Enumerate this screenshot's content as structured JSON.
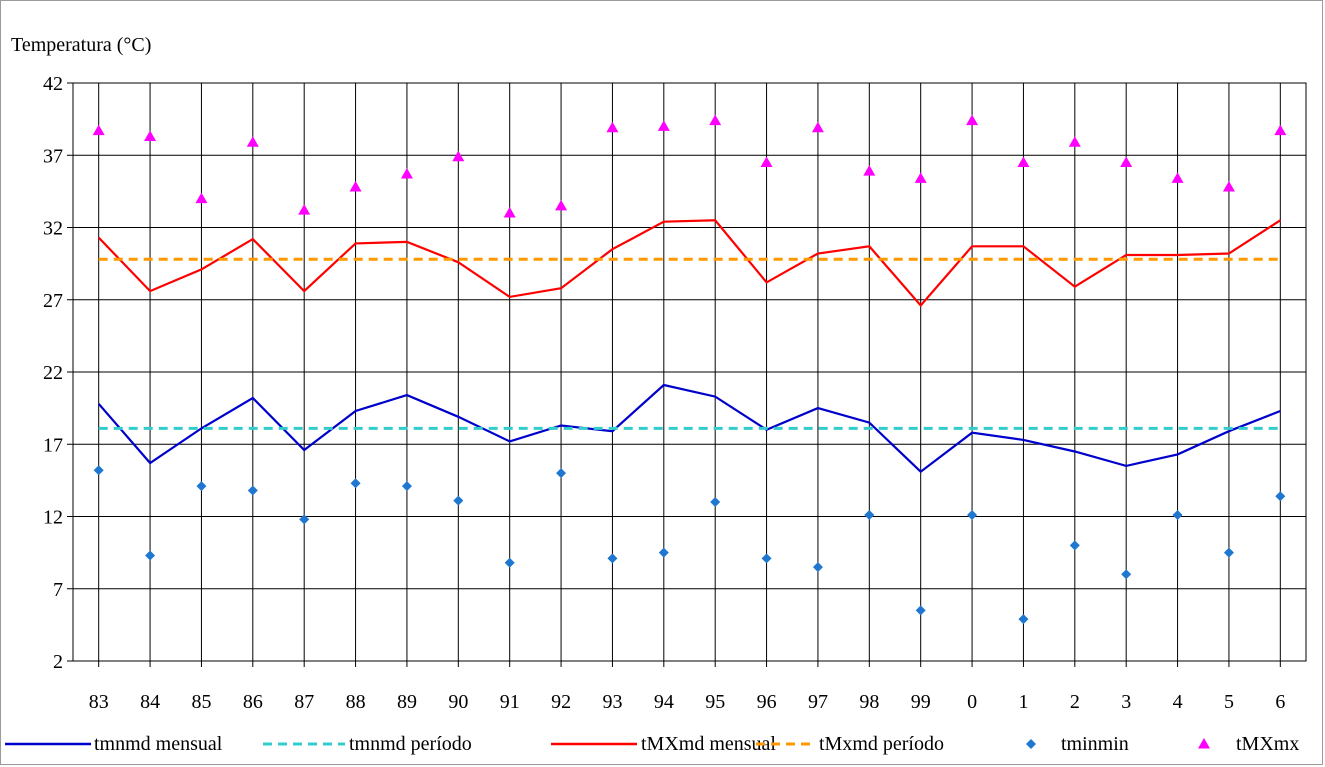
{
  "chart_data": {
    "type": "line",
    "ylabel": "Temperatura (°C)",
    "xlabel": "",
    "ylim": [
      2,
      42
    ],
    "yticks": [
      2,
      7,
      12,
      17,
      22,
      27,
      32,
      37,
      42
    ],
    "grid": true,
    "legend_position": "bottom",
    "categories": [
      "83",
      "84",
      "85",
      "86",
      "87",
      "88",
      "89",
      "90",
      "91",
      "92",
      "93",
      "94",
      "95",
      "96",
      "97",
      "98",
      "99",
      "0",
      "1",
      "2",
      "3",
      "4",
      "5",
      "6"
    ],
    "series": [
      {
        "name": "tmnmd mensual",
        "kind": "line",
        "color": "#0000cc",
        "values": [
          19.8,
          15.7,
          18.1,
          20.2,
          16.6,
          19.3,
          20.4,
          18.9,
          17.2,
          18.3,
          17.9,
          21.1,
          20.3,
          18.0,
          19.5,
          18.5,
          15.1,
          17.8,
          17.3,
          16.5,
          15.5,
          16.3,
          17.9,
          19.3
        ]
      },
      {
        "name": "tmnmd período",
        "kind": "dashed",
        "color": "#33cccc",
        "values": [
          18.1,
          18.1,
          18.1,
          18.1,
          18.1,
          18.1,
          18.1,
          18.1,
          18.1,
          18.1,
          18.1,
          18.1,
          18.1,
          18.1,
          18.1,
          18.1,
          18.1,
          18.1,
          18.1,
          18.1,
          18.1,
          18.1,
          18.1,
          18.1
        ]
      },
      {
        "name": "tMXmd mensual",
        "kind": "line",
        "color": "#ff0000",
        "values": [
          31.3,
          27.6,
          29.1,
          31.2,
          27.6,
          30.9,
          31.0,
          29.6,
          27.2,
          27.8,
          30.5,
          32.4,
          32.5,
          28.2,
          30.2,
          30.7,
          26.6,
          30.7,
          30.7,
          27.9,
          30.1,
          30.1,
          30.2,
          32.5
        ]
      },
      {
        "name": "tMxmd período",
        "kind": "dashed",
        "color": "#ff9900",
        "values": [
          29.8,
          29.8,
          29.8,
          29.8,
          29.8,
          29.8,
          29.8,
          29.8,
          29.8,
          29.8,
          29.8,
          29.8,
          29.8,
          29.8,
          29.8,
          29.8,
          29.8,
          29.8,
          29.8,
          29.8,
          29.8,
          29.8,
          29.8,
          29.8
        ]
      },
      {
        "name": "tminmin",
        "kind": "diamond",
        "color": "#1f77d0",
        "values": [
          15.2,
          9.3,
          14.1,
          13.8,
          11.8,
          14.3,
          14.1,
          13.1,
          8.8,
          15.0,
          9.1,
          9.5,
          13.0,
          9.1,
          8.5,
          12.1,
          5.5,
          12.1,
          4.9,
          10.0,
          8.0,
          12.1,
          9.5,
          13.4
        ]
      },
      {
        "name": "tMXmx",
        "kind": "triangle",
        "color": "#ff00ff",
        "values": [
          38.7,
          38.3,
          34.0,
          37.9,
          33.2,
          34.8,
          35.7,
          36.9,
          33.0,
          33.5,
          38.9,
          39.0,
          39.4,
          36.5,
          38.9,
          35.9,
          35.4,
          39.4,
          36.5,
          37.9,
          36.5,
          35.4,
          34.8,
          38.7
        ]
      }
    ]
  }
}
